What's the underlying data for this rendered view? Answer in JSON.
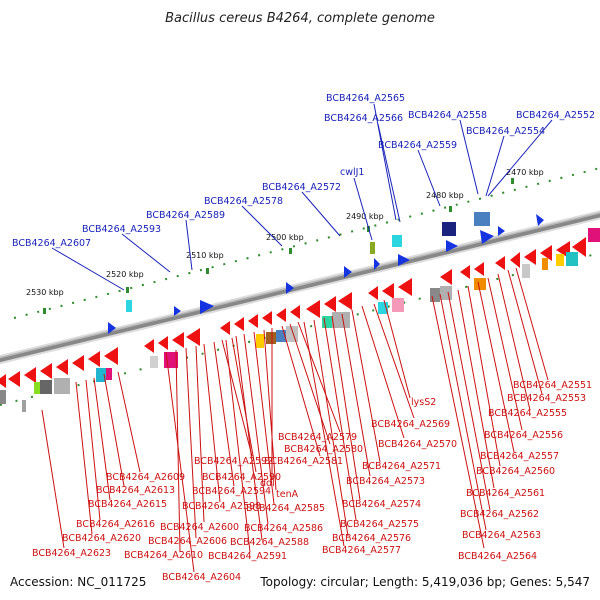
{
  "title": "Bacillus cereus B4264, complete genome",
  "footer": {
    "accession": "Accession: NC_011725",
    "summary": "Topology: circular; Length: 5,419,036 bp; Genes: 5,547"
  },
  "colors": {
    "backbone": "#888888",
    "tick": "#2e8b2e",
    "reverse_gene": "#ee1111",
    "forward_gene": "#1533e0",
    "top_label": "#1a23b8",
    "bottom_label": "#cc1111"
  },
  "ruler": [
    {
      "kbp": 2470,
      "label": "2470 kbp"
    },
    {
      "kbp": 2480,
      "label": "2480 kbp"
    },
    {
      "kbp": 2490,
      "label": "2490 kbp"
    },
    {
      "kbp": 2500,
      "label": "2500 kbp"
    },
    {
      "kbp": 2510,
      "label": "2510 kbp"
    },
    {
      "kbp": 2520,
      "label": "2520 kbp"
    },
    {
      "kbp": 2530,
      "label": "2530 kbp"
    }
  ],
  "top_labels": [
    {
      "text": "BCB4264_A2565"
    },
    {
      "text": "BCB4264_A2566"
    },
    {
      "text": "BCB4264_A2558"
    },
    {
      "text": "BCB4264_A2552"
    },
    {
      "text": "BCB4264_A2554"
    },
    {
      "text": "BCB4264_A2559"
    },
    {
      "text": "cwlJ1"
    },
    {
      "text": "BCB4264_A2572"
    },
    {
      "text": "BCB4264_A2578"
    },
    {
      "text": "BCB4264_A2589"
    },
    {
      "text": "BCB4264_A2593"
    },
    {
      "text": "BCB4264_A2607"
    }
  ],
  "bottom_labels": [
    {
      "text": "BCB4264_A2551"
    },
    {
      "text": "BCB4264_A2553"
    },
    {
      "text": "BCB4264_A2555"
    },
    {
      "text": "lysS2"
    },
    {
      "text": "BCB4264_A2556"
    },
    {
      "text": "BCB4264_A2569"
    },
    {
      "text": "BCB4264_A2579"
    },
    {
      "text": "BCB4264_A2570"
    },
    {
      "text": "BCB4264_A2557"
    },
    {
      "text": "BCB4264_A2580"
    },
    {
      "text": "BCB4264_A2592"
    },
    {
      "text": "BCB4264_A2581"
    },
    {
      "text": "BCB4264_A2571"
    },
    {
      "text": "BCB4264_A2560"
    },
    {
      "text": "BCB4264_A2609"
    },
    {
      "text": "BCB4264_A2590"
    },
    {
      "text": "ddl"
    },
    {
      "text": "BCB4264_A2573"
    },
    {
      "text": "BCB4264_A2613"
    },
    {
      "text": "BCB4264_A2594"
    },
    {
      "text": "tenA"
    },
    {
      "text": "BCB4264_A2561"
    },
    {
      "text": "BCB4264_A2615"
    },
    {
      "text": "BCB4264_A2598"
    },
    {
      "text": "BCB4264_A2585"
    },
    {
      "text": "BCB4264_A2574"
    },
    {
      "text": "BCB4264_A2562"
    },
    {
      "text": "BCB4264_A2616"
    },
    {
      "text": "BCB4264_A2600"
    },
    {
      "text": "BCB4264_A2586"
    },
    {
      "text": "BCB4264_A2575"
    },
    {
      "text": "BCB4264_A2620"
    },
    {
      "text": "BCB4264_A2606"
    },
    {
      "text": "BCB4264_A2588"
    },
    {
      "text": "BCB4264_A2576"
    },
    {
      "text": "BCB4264_A2563"
    },
    {
      "text": "BCB4264_A2623"
    },
    {
      "text": "BCB4264_A2610"
    },
    {
      "text": "BCB4264_A2591"
    },
    {
      "text": "BCB4264_A2577"
    },
    {
      "text": "BCB4264_A2564"
    },
    {
      "text": "BCB4264_A2604"
    }
  ]
}
